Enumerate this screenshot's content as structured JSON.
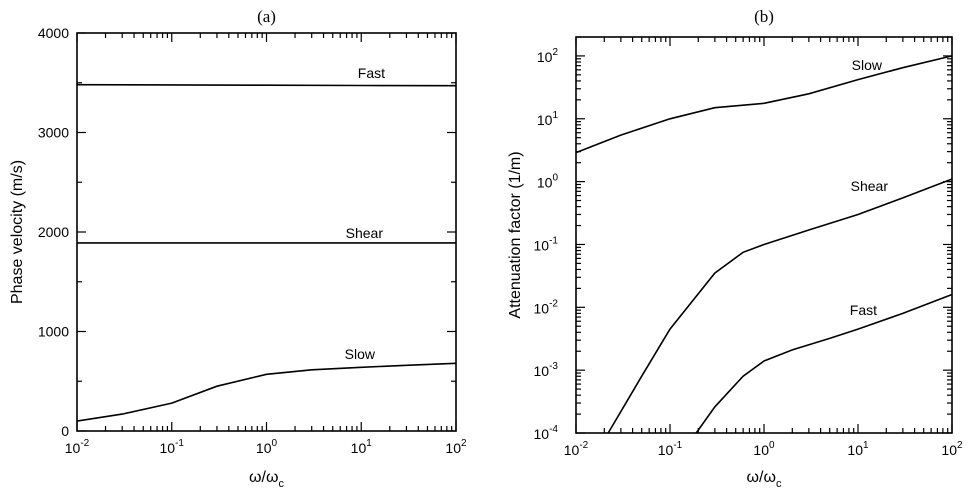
{
  "chart_data": [
    {
      "type": "line",
      "title": "(a)",
      "xlabel": "ω/ω",
      "xlabel_sub": "c",
      "ylabel": "Phase velocity (m/s)",
      "xscale": "log",
      "xlim": [
        0.01,
        100
      ],
      "ylim": [
        0,
        4000
      ],
      "xticks": [
        {
          "base": "10",
          "exp": "-2"
        },
        {
          "base": "10",
          "exp": "-1"
        },
        {
          "base": "10",
          "exp": "0"
        },
        {
          "base": "10",
          "exp": "1"
        },
        {
          "base": "10",
          "exp": "2"
        }
      ],
      "yticks": [
        "0",
        "1000",
        "2000",
        "3000",
        "4000"
      ],
      "grid": false,
      "series": [
        {
          "name": "Fast",
          "x": [
            0.01,
            0.1,
            1,
            10,
            100
          ],
          "y": [
            3480,
            3478,
            3475,
            3472,
            3470
          ]
        },
        {
          "name": "Shear",
          "x": [
            0.01,
            0.1,
            1,
            10,
            100
          ],
          "y": [
            1890,
            1890,
            1890,
            1890,
            1890
          ]
        },
        {
          "name": "Slow",
          "x": [
            0.01,
            0.03,
            0.1,
            0.3,
            1,
            3,
            10,
            30,
            100
          ],
          "y": [
            100,
            170,
            280,
            450,
            570,
            615,
            640,
            660,
            680
          ]
        }
      ]
    },
    {
      "type": "line",
      "title": "(b)",
      "xlabel": "ω/ω",
      "xlabel_sub": "c",
      "ylabel": "Attenuation factor (1/m)",
      "xscale": "log",
      "yscale": "log",
      "xlim": [
        0.01,
        100
      ],
      "ylim": [
        0.0001,
        200
      ],
      "xticks": [
        {
          "base": "10",
          "exp": "-2"
        },
        {
          "base": "10",
          "exp": "-1"
        },
        {
          "base": "10",
          "exp": "0"
        },
        {
          "base": "10",
          "exp": "1"
        },
        {
          "base": "10",
          "exp": "2"
        }
      ],
      "yticks": [
        {
          "base": "10",
          "exp": "-4"
        },
        {
          "base": "10",
          "exp": "-3"
        },
        {
          "base": "10",
          "exp": "-2"
        },
        {
          "base": "10",
          "exp": "-1"
        },
        {
          "base": "10",
          "exp": "0"
        },
        {
          "base": "10",
          "exp": "1"
        },
        {
          "base": "10",
          "exp": "2"
        }
      ],
      "grid": false,
      "series": [
        {
          "name": "Slow",
          "x": [
            0.01,
            0.03,
            0.1,
            0.3,
            1,
            3,
            10,
            30,
            100
          ],
          "y": [
            2.9,
            5.5,
            10,
            15,
            17.6,
            25,
            42,
            65,
            100
          ]
        },
        {
          "name": "Shear",
          "x": [
            0.022,
            0.05,
            0.1,
            0.3,
            0.6,
            1,
            3,
            10,
            30,
            100
          ],
          "y": [
            0.0001,
            0.0008,
            0.0045,
            0.035,
            0.075,
            0.1,
            0.17,
            0.3,
            0.55,
            1.1
          ]
        },
        {
          "name": "Fast",
          "x": [
            0.19,
            0.3,
            0.6,
            1,
            2,
            5,
            10,
            30,
            100
          ],
          "y": [
            0.0001,
            0.00026,
            0.0008,
            0.0014,
            0.0021,
            0.0032,
            0.0045,
            0.008,
            0.016
          ]
        }
      ]
    }
  ]
}
